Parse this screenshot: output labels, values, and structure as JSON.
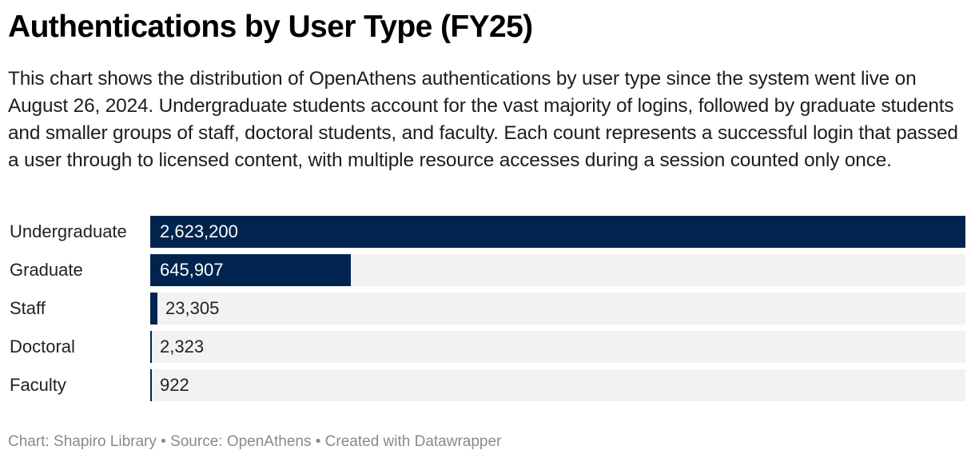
{
  "header": {
    "title": "Authentications by User Type (FY25)",
    "description": "This chart shows the distribution of OpenAthens authentications by user type since the system went live on August 26, 2024. Undergraduate students account for the vast majority of logins, followed by graduate students and smaller groups of staff, doctoral students, and faculty. Each count represents a successful login that passed a user through to licensed content, with multiple resource accesses during a session counted only once."
  },
  "chart_data": {
    "type": "bar",
    "orientation": "horizontal",
    "title": "Authentications by User Type (FY25)",
    "categories": [
      "Undergraduate",
      "Graduate",
      "Staff",
      "Doctoral",
      "Faculty"
    ],
    "values": [
      2623200,
      645907,
      23305,
      2323,
      922
    ],
    "value_labels": [
      "2,623,200",
      "645,907",
      "23,305",
      "2,323",
      "922"
    ],
    "xlabel": "",
    "ylabel": "",
    "xlim": [
      0,
      2623200
    ],
    "grid": false,
    "legend": "none",
    "bar_color": "#01244f",
    "track_color": "#f2f2f2"
  },
  "footer": {
    "text": "Chart: Shapiro Library • Source: OpenAthens • Created with Datawrapper"
  }
}
